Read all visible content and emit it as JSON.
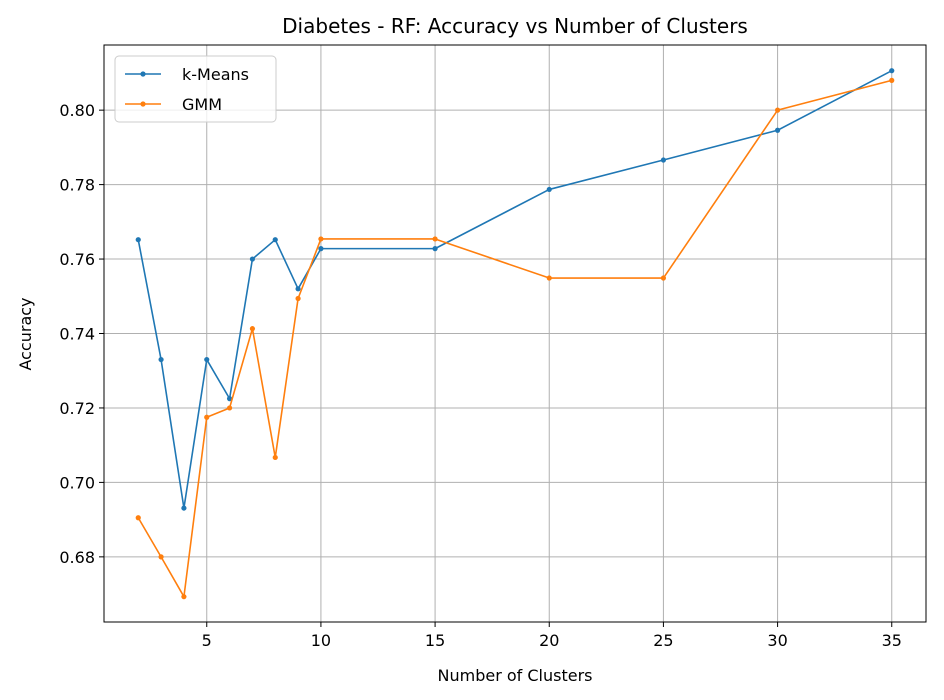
{
  "chart_data": {
    "type": "line",
    "title": "Diabetes - RF: Accuracy vs Number of Clusters",
    "xlabel": "Number of Clusters",
    "ylabel": "Accuracy",
    "xlim": [
      0.5,
      36.5
    ],
    "ylim": [
      0.6625,
      0.8175
    ],
    "xticks": [
      5,
      10,
      15,
      20,
      25,
      30,
      35
    ],
    "xtick_labels": [
      "5",
      "10",
      "15",
      "20",
      "25",
      "30",
      "35"
    ],
    "yticks": [
      0.68,
      0.7,
      0.72,
      0.74,
      0.76,
      0.78,
      0.8
    ],
    "ytick_labels": [
      "0.68",
      "0.70",
      "0.72",
      "0.74",
      "0.76",
      "0.78",
      "0.80"
    ],
    "grid": true,
    "legend_position": "top-left",
    "x": [
      2,
      3,
      4,
      5,
      6,
      7,
      8,
      9,
      10,
      15,
      20,
      25,
      30,
      35
    ],
    "series": [
      {
        "name": "k-Means",
        "color": "#1f77b4",
        "values": [
          0.7652,
          0.733,
          0.6931,
          0.733,
          0.7225,
          0.76,
          0.7652,
          0.752,
          0.7628,
          0.7628,
          0.7787,
          0.7866,
          0.7946,
          0.8106
        ]
      },
      {
        "name": "GMM",
        "color": "#ff7f0e",
        "values": [
          0.6905,
          0.68,
          0.6693,
          0.7175,
          0.72,
          0.7413,
          0.7067,
          0.7494,
          0.7654,
          0.7654,
          0.7549,
          0.7549,
          0.8,
          0.808
        ]
      }
    ]
  }
}
